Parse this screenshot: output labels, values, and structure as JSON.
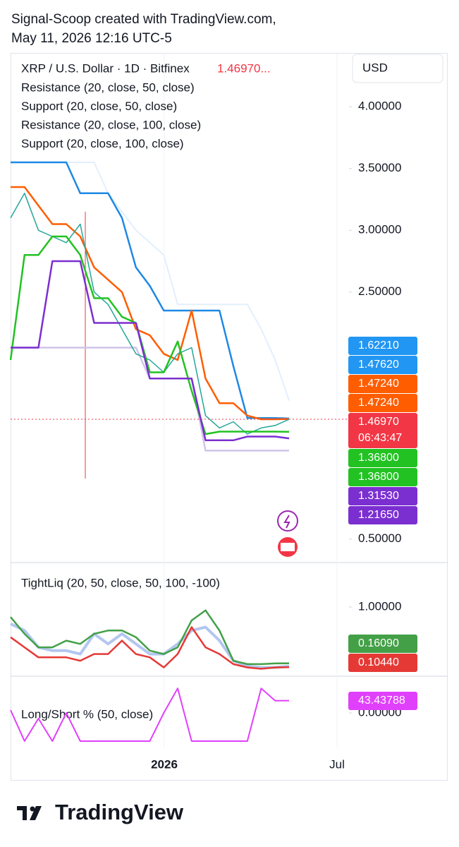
{
  "header": {
    "line1": "Signal-Scoop created with TradingView.com,",
    "line2": "May 11, 2026 12:16 UTC-5"
  },
  "chart": {
    "symbol": "XRP / U.S. Dollar · 1D · Bitfinex",
    "last_price": "1.46970...",
    "currency": "USD",
    "price_pane": {
      "ylim": [
        0.31,
        4.43
      ],
      "yticks": [
        {
          "value": 4.0,
          "label": "4.00000"
        },
        {
          "value": 3.5,
          "label": "3.50000"
        },
        {
          "value": 3.0,
          "label": "3.00000"
        },
        {
          "value": 2.5,
          "label": "2.50000"
        },
        {
          "value": 0.5,
          "label": "0.50000"
        }
      ],
      "legend": [
        "Resistance (20, close, 50, close)",
        "Support (20, close, 50, close)",
        "Resistance (20, close, 100, close)",
        "Support (20, close, 100, close)"
      ],
      "series": [
        {
          "color": "#e3effd",
          "width": 2,
          "values": [
            3.55,
            3.55,
            3.55,
            3.55,
            3.55,
            3.55,
            3.55,
            3.3,
            3.15,
            3.0,
            2.9,
            2.8,
            2.4,
            2.4,
            2.4,
            2.4,
            2.4,
            2.4,
            2.2,
            1.95,
            1.6221
          ]
        },
        {
          "color": "#d1c4e9",
          "width": 2.5,
          "values": [
            2.05,
            2.05,
            2.05,
            2.05,
            2.05,
            2.05,
            2.05,
            2.05,
            2.05,
            2.05,
            1.8,
            1.8,
            1.8,
            1.8,
            1.2165,
            1.2165,
            1.2165,
            1.2165,
            1.2165,
            1.2165,
            1.2165
          ]
        },
        {
          "color": "#1e88e5",
          "width": 2.5,
          "values": [
            3.55,
            3.55,
            3.55,
            3.55,
            3.55,
            3.3,
            3.3,
            3.3,
            3.1,
            2.7,
            2.55,
            2.35,
            2.35,
            2.35,
            2.35,
            2.35,
            1.9,
            1.48,
            1.48,
            1.48,
            1.4762
          ]
        },
        {
          "color": "#ff5d00",
          "width": 2.5,
          "values": [
            3.35,
            3.35,
            3.2,
            3.05,
            3.05,
            2.95,
            2.7,
            2.6,
            2.5,
            2.2,
            2.15,
            2.0,
            1.95,
            2.35,
            1.8,
            1.6,
            1.6,
            1.5,
            1.47,
            1.47,
            1.4724
          ]
        },
        {
          "color": "#26a69a",
          "width": 1.5,
          "values": [
            3.1,
            3.3,
            3.0,
            2.95,
            2.9,
            3.05,
            2.5,
            2.4,
            2.2,
            2.0,
            1.95,
            1.85,
            2.0,
            2.05,
            1.5,
            1.4,
            1.45,
            1.35,
            1.4,
            1.42,
            1.4697
          ]
        },
        {
          "color": "#22c222",
          "width": 2.5,
          "values": [
            1.95,
            2.8,
            2.8,
            2.95,
            2.95,
            2.8,
            2.45,
            2.45,
            2.3,
            2.25,
            1.85,
            1.85,
            2.1,
            1.7,
            1.35,
            1.37,
            1.37,
            1.37,
            1.37,
            1.37,
            1.368
          ]
        },
        {
          "color": "#7b2fd0",
          "width": 2.5,
          "values": [
            2.05,
            2.05,
            2.05,
            2.75,
            2.75,
            2.75,
            2.25,
            2.25,
            2.25,
            2.25,
            1.8,
            1.8,
            1.8,
            1.8,
            1.3,
            1.3,
            1.3,
            1.33,
            1.33,
            1.33,
            1.3153
          ]
        }
      ],
      "price_labels": [
        {
          "value": 1.6221,
          "label": "1.62210",
          "color": "#2196f3"
        },
        {
          "value": 1.4762,
          "label": "1.47620",
          "color": "#2196f3"
        },
        {
          "value": 1.4724,
          "label": "1.47240",
          "color": "#ff5d00"
        },
        {
          "value": 1.4724,
          "label": "1.47240",
          "color": "#ff5d00"
        },
        {
          "value": 1.4697,
          "label": "1.46970",
          "color": "#f23645",
          "countdown": "06:43:47"
        },
        {
          "value": 1.368,
          "label": "1.36800",
          "color": "#22c222"
        },
        {
          "value": 1.368,
          "label": "1.36800",
          "color": "#22c222"
        },
        {
          "value": 1.3153,
          "label": "1.31530",
          "color": "#7b2fd0"
        },
        {
          "value": 1.2165,
          "label": "1.21650",
          "color": "#7b2fd0"
        }
      ]
    },
    "liq_pane": {
      "title": "TightLiq (20, 50, close, 50, 100, -100)",
      "ylim": [
        -0.03,
        1.63
      ],
      "yticks": [
        {
          "value": 1.0,
          "label": "1.00000"
        }
      ],
      "series": [
        {
          "color": "#b3c6f0",
          "width": 4,
          "values": [
            0.75,
            0.65,
            0.4,
            0.35,
            0.35,
            0.3,
            0.6,
            0.45,
            0.6,
            0.45,
            0.3,
            0.3,
            0.45,
            0.65,
            0.7,
            0.5,
            0.2,
            0.12,
            0.1,
            0.1,
            0.12
          ]
        },
        {
          "color": "#43a047",
          "width": 2.5,
          "values": [
            0.85,
            0.6,
            0.4,
            0.4,
            0.5,
            0.45,
            0.6,
            0.65,
            0.65,
            0.55,
            0.35,
            0.3,
            0.4,
            0.8,
            0.95,
            0.65,
            0.2,
            0.15,
            0.15,
            0.16,
            0.1609
          ]
        },
        {
          "color": "#e53935",
          "width": 2.5,
          "values": [
            0.55,
            0.4,
            0.25,
            0.25,
            0.25,
            0.2,
            0.3,
            0.3,
            0.5,
            0.3,
            0.25,
            0.1,
            0.3,
            0.7,
            0.4,
            0.3,
            0.15,
            0.1,
            0.08,
            0.1,
            0.1044
          ]
        }
      ],
      "price_labels": [
        {
          "value": 0.1609,
          "label": "0.16090",
          "color": "#43a047"
        },
        {
          "value": 0.1044,
          "label": "0.10440",
          "color": "#e53935"
        }
      ]
    },
    "ls_pane": {
      "title": "Long/Short % (50, close)",
      "ylim": [
        -125,
        125
      ],
      "yticks": [
        {
          "value": 0,
          "label": "0.00000"
        }
      ],
      "series": [
        {
          "color": "#e040fb",
          "width": 2,
          "values": [
            10,
            -100,
            -20,
            -100,
            0,
            -100,
            -100,
            -100,
            -100,
            -100,
            -100,
            0,
            87,
            -100,
            -100,
            -100,
            -100,
            -100,
            87,
            43,
            43.43788
          ]
        }
      ],
      "price_labels": [
        {
          "value": 43.43788,
          "label": "43.43788",
          "color": "#e040fb"
        }
      ]
    },
    "x_labels": [
      "2026",
      "Jul"
    ]
  },
  "footer": {
    "logo": "TradingView"
  }
}
